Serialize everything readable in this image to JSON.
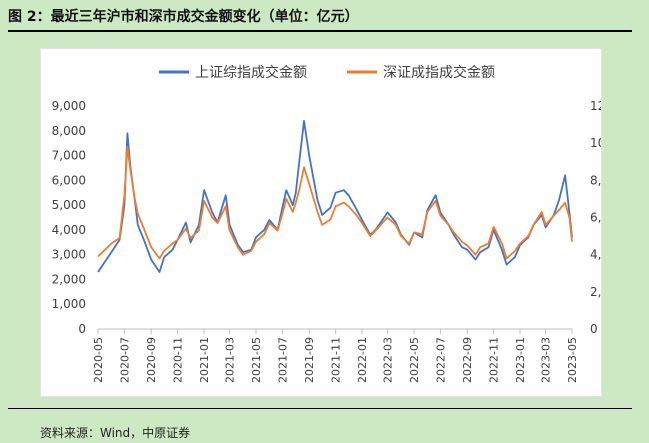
{
  "figure": {
    "title": "图 2：最近三年沪市和深市成交金额变化（单位：亿元）",
    "source": "资料来源：Wind，中原证券"
  },
  "chart_data": {
    "type": "line",
    "title": "",
    "xlabel": "",
    "ylabel": "",
    "x_ticks": [
      "2020-05",
      "2020-07",
      "2020-09",
      "2020-11",
      "2021-01",
      "2021-03",
      "2021-05",
      "2021-07",
      "2021-09",
      "2021-11",
      "2022-01",
      "2022-03",
      "2022-05",
      "2022-07",
      "2022-09",
      "2022-11",
      "2023-01",
      "2023-03",
      "2023-05"
    ],
    "y_left": {
      "ticks": [
        "0",
        "1,000",
        "2,000",
        "3,000",
        "4,000",
        "5,000",
        "6,000",
        "7,000",
        "8,000",
        "9,000"
      ],
      "range": [
        0,
        9000
      ]
    },
    "y_right": {
      "ticks": [
        "0",
        "2,000",
        "4,000",
        "6,000",
        "8,000",
        "10,000",
        "12,000"
      ],
      "range": [
        0,
        12000
      ]
    },
    "legend_position": "top",
    "grid": false,
    "series": [
      {
        "name": "上证综指成交金额",
        "axis": "left",
        "color": "#4472c4",
        "points": [
          [
            "2020-05",
            2300
          ],
          [
            "2020-06",
            3100
          ],
          [
            "2020-06-20",
            3600
          ],
          [
            "2020-07-01",
            5000
          ],
          [
            "2020-07-08",
            7900
          ],
          [
            "2020-07-15",
            6500
          ],
          [
            "2020-07-25",
            5200
          ],
          [
            "2020-08",
            4200
          ],
          [
            "2020-08-15",
            3600
          ],
          [
            "2020-09",
            2800
          ],
          [
            "2020-09-20",
            2300
          ],
          [
            "2020-10",
            2900
          ],
          [
            "2020-10-20",
            3200
          ],
          [
            "2020-11",
            3600
          ],
          [
            "2020-11-20",
            4300
          ],
          [
            "2020-12",
            3500
          ],
          [
            "2020-12-20",
            4200
          ],
          [
            "2021-01",
            5600
          ],
          [
            "2021-01-20",
            4700
          ],
          [
            "2021-02",
            4300
          ],
          [
            "2021-02-20",
            5400
          ],
          [
            "2021-03",
            4200
          ],
          [
            "2021-03-20",
            3400
          ],
          [
            "2021-04",
            3100
          ],
          [
            "2021-04-20",
            3200
          ],
          [
            "2021-05",
            3700
          ],
          [
            "2021-05-20",
            4000
          ],
          [
            "2021-06",
            4400
          ],
          [
            "2021-06-20",
            4000
          ],
          [
            "2021-07",
            4900
          ],
          [
            "2021-07-10",
            5600
          ],
          [
            "2021-07-25",
            5000
          ],
          [
            "2021-08",
            5500
          ],
          [
            "2021-08-10",
            6900
          ],
          [
            "2021-08-20",
            8400
          ],
          [
            "2021-09",
            7000
          ],
          [
            "2021-09-20",
            5200
          ],
          [
            "2021-10",
            4600
          ],
          [
            "2021-10-20",
            4900
          ],
          [
            "2021-11",
            5500
          ],
          [
            "2021-11-20",
            5600
          ],
          [
            "2021-12",
            5400
          ],
          [
            "2021-12-20",
            4800
          ],
          [
            "2022-01",
            4400
          ],
          [
            "2022-01-20",
            3800
          ],
          [
            "2022-02",
            4000
          ],
          [
            "2022-03",
            4700
          ],
          [
            "2022-03-20",
            4300
          ],
          [
            "2022-04",
            3800
          ],
          [
            "2022-04-20",
            3400
          ],
          [
            "2022-05",
            3900
          ],
          [
            "2022-05-20",
            3700
          ],
          [
            "2022-06",
            4800
          ],
          [
            "2022-06-20",
            5400
          ],
          [
            "2022-07",
            4700
          ],
          [
            "2022-07-20",
            4200
          ],
          [
            "2022-08",
            3800
          ],
          [
            "2022-08-20",
            3300
          ],
          [
            "2022-09",
            3200
          ],
          [
            "2022-09-20",
            2800
          ],
          [
            "2022-10",
            3100
          ],
          [
            "2022-10-20",
            3300
          ],
          [
            "2022-11",
            4000
          ],
          [
            "2022-11-20",
            3200
          ],
          [
            "2022-12",
            2600
          ],
          [
            "2022-12-20",
            2900
          ],
          [
            "2023-01",
            3400
          ],
          [
            "2023-01-20",
            3700
          ],
          [
            "2023-02",
            4200
          ],
          [
            "2023-02-20",
            4600
          ],
          [
            "2023-03",
            4100
          ],
          [
            "2023-03-20",
            4600
          ],
          [
            "2023-04",
            5200
          ],
          [
            "2023-04-15",
            6200
          ],
          [
            "2023-04-25",
            4700
          ],
          [
            "2023-05",
            3700
          ]
        ]
      },
      {
        "name": "深证成指成交金额",
        "axis": "right",
        "color": "#ed7d31",
        "points": [
          [
            "2020-05",
            3900
          ],
          [
            "2020-06",
            4600
          ],
          [
            "2020-06-20",
            4900
          ],
          [
            "2020-07-01",
            7200
          ],
          [
            "2020-07-08",
            9800
          ],
          [
            "2020-07-15",
            8500
          ],
          [
            "2020-07-25",
            7000
          ],
          [
            "2020-08",
            6200
          ],
          [
            "2020-08-15",
            5400
          ],
          [
            "2020-09",
            4400
          ],
          [
            "2020-09-20",
            3800
          ],
          [
            "2020-10",
            4200
          ],
          [
            "2020-10-20",
            4600
          ],
          [
            "2020-11",
            4800
          ],
          [
            "2020-11-20",
            5400
          ],
          [
            "2020-12",
            4900
          ],
          [
            "2020-12-20",
            5300
          ],
          [
            "2021-01",
            6900
          ],
          [
            "2021-01-20",
            6000
          ],
          [
            "2021-02",
            5700
          ],
          [
            "2021-02-20",
            6600
          ],
          [
            "2021-03",
            5300
          ],
          [
            "2021-03-20",
            4400
          ],
          [
            "2021-04",
            4000
          ],
          [
            "2021-04-20",
            4200
          ],
          [
            "2021-05",
            4700
          ],
          [
            "2021-05-20",
            5100
          ],
          [
            "2021-06",
            5700
          ],
          [
            "2021-06-20",
            5300
          ],
          [
            "2021-07",
            6200
          ],
          [
            "2021-07-10",
            7000
          ],
          [
            "2021-07-25",
            6300
          ],
          [
            "2021-08",
            6800
          ],
          [
            "2021-08-10",
            7600
          ],
          [
            "2021-08-20",
            8700
          ],
          [
            "2021-09",
            7800
          ],
          [
            "2021-09-20",
            6300
          ],
          [
            "2021-10",
            5600
          ],
          [
            "2021-10-20",
            5900
          ],
          [
            "2021-11",
            6600
          ],
          [
            "2021-11-20",
            6800
          ],
          [
            "2021-12",
            6600
          ],
          [
            "2021-12-20",
            6100
          ],
          [
            "2022-01",
            5700
          ],
          [
            "2022-01-20",
            5000
          ],
          [
            "2022-02",
            5300
          ],
          [
            "2022-03",
            6000
          ],
          [
            "2022-03-20",
            5600
          ],
          [
            "2022-04",
            5000
          ],
          [
            "2022-04-20",
            4600
          ],
          [
            "2022-05",
            5200
          ],
          [
            "2022-05-20",
            5100
          ],
          [
            "2022-06",
            6300
          ],
          [
            "2022-06-20",
            6900
          ],
          [
            "2022-07",
            6100
          ],
          [
            "2022-07-20",
            5600
          ],
          [
            "2022-08",
            5200
          ],
          [
            "2022-08-20",
            4700
          ],
          [
            "2022-09",
            4500
          ],
          [
            "2022-09-20",
            4000
          ],
          [
            "2022-10",
            4400
          ],
          [
            "2022-10-20",
            4600
          ],
          [
            "2022-11",
            5500
          ],
          [
            "2022-11-20",
            4600
          ],
          [
            "2022-12",
            3800
          ],
          [
            "2022-12-20",
            4200
          ],
          [
            "2023-01",
            4600
          ],
          [
            "2023-01-20",
            5000
          ],
          [
            "2023-02",
            5600
          ],
          [
            "2023-02-20",
            6300
          ],
          [
            "2023-03",
            5600
          ],
          [
            "2023-03-20",
            6100
          ],
          [
            "2023-04",
            6400
          ],
          [
            "2023-04-15",
            6800
          ],
          [
            "2023-04-25",
            6000
          ],
          [
            "2023-05",
            4700
          ]
        ]
      }
    ]
  }
}
